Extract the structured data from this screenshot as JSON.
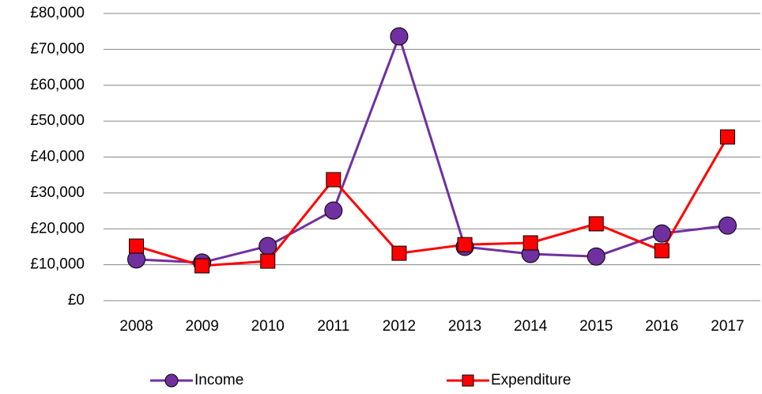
{
  "chart_data": {
    "type": "line",
    "categories": [
      "2008",
      "2009",
      "2010",
      "2011",
      "2012",
      "2013",
      "2014",
      "2015",
      "2016",
      "2017"
    ],
    "series": [
      {
        "name": "Income",
        "color": "#7030a0",
        "marker": "circle",
        "values": [
          11500,
          10600,
          15200,
          25100,
          73600,
          15000,
          13000,
          12300,
          18700,
          20900
        ]
      },
      {
        "name": "Expenditure",
        "color": "#ff0000",
        "marker": "square",
        "values": [
          15200,
          9700,
          11000,
          33700,
          13200,
          15600,
          16100,
          21400,
          13900,
          45600
        ]
      }
    ],
    "ylim": [
      0,
      80000
    ],
    "yticks": [
      {
        "value": 0,
        "label": "£0"
      },
      {
        "value": 10000,
        "label": "£10,000"
      },
      {
        "value": 20000,
        "label": "£20,000"
      },
      {
        "value": 30000,
        "label": "£30,000"
      },
      {
        "value": 40000,
        "label": "£40,000"
      },
      {
        "value": 50000,
        "label": "£50,000"
      },
      {
        "value": 60000,
        "label": "£60,000"
      },
      {
        "value": 70000,
        "label": "£70,000"
      },
      {
        "value": 80000,
        "label": "£80,000"
      }
    ],
    "grid": true,
    "legend": "bottom"
  }
}
